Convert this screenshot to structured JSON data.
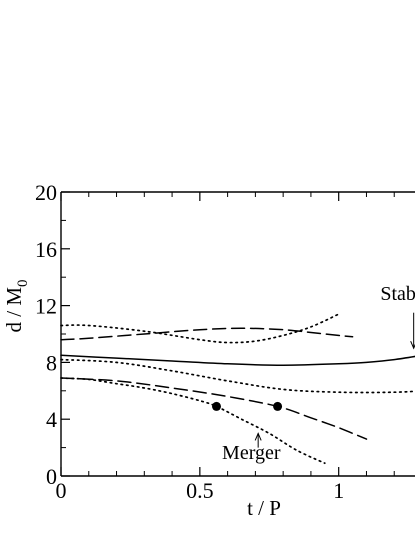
{
  "chart_data": {
    "type": "line",
    "xlabel": "t / P",
    "ylabel_main": "d / M",
    "ylabel_sub": "0",
    "xlim": [
      0,
      1.3
    ],
    "ylim": [
      0,
      20
    ],
    "x_ticks": [
      {
        "value": 0,
        "label": "0"
      },
      {
        "value": 0.5,
        "label": "0.5"
      },
      {
        "value": 1,
        "label": "1"
      }
    ],
    "x_minor_ticks": [
      0.1,
      0.2,
      0.3,
      0.4,
      0.6,
      0.7,
      0.8,
      0.9,
      1.1,
      1.2
    ],
    "y_ticks": [
      {
        "value": 0,
        "label": "0"
      },
      {
        "value": 4,
        "label": "4"
      },
      {
        "value": 8,
        "label": "8"
      },
      {
        "value": 12,
        "label": "12"
      },
      {
        "value": 16,
        "label": "16"
      },
      {
        "value": 20,
        "label": "20"
      }
    ],
    "y_minor_ticks": [
      2,
      6,
      10,
      14,
      18
    ],
    "grid": false,
    "series": [
      {
        "style": "solid",
        "x": [
          0,
          0.2,
          0.4,
          0.6,
          0.8,
          1.0,
          1.1,
          1.2,
          1.3
        ],
        "y": [
          8.5,
          8.3,
          8.1,
          7.9,
          7.8,
          7.9,
          8.0,
          8.2,
          8.5
        ]
      },
      {
        "style": "dotted",
        "x": [
          0,
          0.2,
          0.4,
          0.6,
          0.8,
          1.0,
          1.2,
          1.3
        ],
        "y": [
          8.2,
          8.0,
          7.4,
          6.7,
          6.1,
          5.9,
          5.9,
          6.0
        ]
      },
      {
        "style": "dotted",
        "x": [
          0,
          0.1,
          0.3,
          0.5,
          0.6,
          0.7,
          0.8,
          0.9,
          1.0
        ],
        "y": [
          10.6,
          10.6,
          10.2,
          9.6,
          9.4,
          9.5,
          9.9,
          10.5,
          11.4
        ]
      },
      {
        "style": "dashed",
        "x": [
          0,
          0.1,
          0.3,
          0.5,
          0.65,
          0.8,
          0.95,
          1.05
        ],
        "y": [
          9.6,
          9.7,
          10.0,
          10.3,
          10.4,
          10.3,
          10.0,
          9.8
        ]
      },
      {
        "style": "dashed",
        "x": [
          0,
          0.2,
          0.4,
          0.6,
          0.78,
          0.9,
          1.0,
          1.1
        ],
        "y": [
          6.9,
          6.7,
          6.2,
          5.6,
          4.9,
          4.1,
          3.4,
          2.6
        ]
      },
      {
        "style": "dotted",
        "x": [
          0,
          0.1,
          0.2,
          0.3,
          0.4,
          0.5,
          0.56,
          0.65,
          0.75,
          0.85,
          0.95
        ],
        "y": [
          6.9,
          6.8,
          6.5,
          6.2,
          5.8,
          5.3,
          4.9,
          4.0,
          3.0,
          1.8,
          0.9
        ]
      }
    ],
    "markers": [
      {
        "x": 0.56,
        "y": 4.9
      },
      {
        "x": 0.78,
        "y": 4.9
      }
    ],
    "annotations": [
      {
        "text": "Stabl",
        "x": 1.15,
        "y": 12.4,
        "arrow_from": [
          1.27,
          11.5
        ],
        "arrow_to": [
          1.27,
          9.0
        ]
      },
      {
        "text": "Merger",
        "x": 0.58,
        "y": 1.2,
        "arrow_from": [
          0.71,
          2.0
        ],
        "arrow_to": [
          0.71,
          3.0
        ]
      }
    ]
  }
}
